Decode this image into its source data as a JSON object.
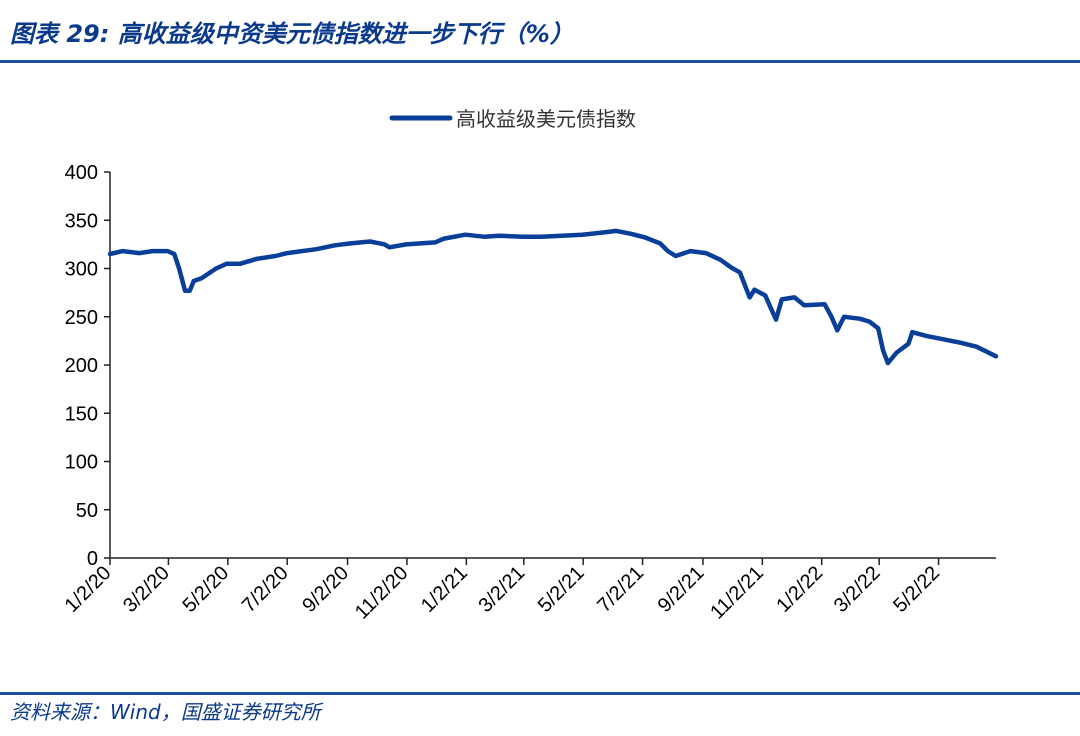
{
  "header": {
    "caption": "图表 29:  高收益级中资美元债指数进一步下行（%）"
  },
  "footer": {
    "source": "资料来源：Wind，国盛证券研究所"
  },
  "colors": {
    "accent": "#0b3a8c",
    "series": "#0a3f99",
    "rule": "#1f4e9c"
  },
  "chart_data": {
    "type": "line",
    "title": "",
    "xlabel": "",
    "ylabel": "",
    "ylim": [
      0,
      400
    ],
    "yticks": [
      0,
      50,
      100,
      150,
      200,
      250,
      300,
      350,
      400
    ],
    "xlim": [
      "2020-01-02",
      "2022-06-30"
    ],
    "xticks": [
      {
        "date": "2020-01-02",
        "label": "1/2/20"
      },
      {
        "date": "2020-03-02",
        "label": "3/2/20"
      },
      {
        "date": "2020-05-02",
        "label": "5/2/20"
      },
      {
        "date": "2020-07-02",
        "label": "7/2/20"
      },
      {
        "date": "2020-09-02",
        "label": "9/2/20"
      },
      {
        "date": "2020-11-02",
        "label": "11/2/20"
      },
      {
        "date": "2021-01-02",
        "label": "1/2/21"
      },
      {
        "date": "2021-03-02",
        "label": "3/2/21"
      },
      {
        "date": "2021-05-02",
        "label": "5/2/21"
      },
      {
        "date": "2021-07-02",
        "label": "7/2/21"
      },
      {
        "date": "2021-09-02",
        "label": "9/2/21"
      },
      {
        "date": "2021-11-02",
        "label": "11/2/21"
      },
      {
        "date": "2022-01-02",
        "label": "1/2/22"
      },
      {
        "date": "2022-03-02",
        "label": "3/2/22"
      },
      {
        "date": "2022-05-02",
        "label": "5/2/22"
      }
    ],
    "grid": false,
    "legend_position": "top-center",
    "series": [
      {
        "name": "高收益级美元债指数",
        "points": [
          [
            "2020-01-02",
            315
          ],
          [
            "2020-01-15",
            318
          ],
          [
            "2020-02-01",
            316
          ],
          [
            "2020-02-15",
            318
          ],
          [
            "2020-03-01",
            318
          ],
          [
            "2020-03-08",
            315
          ],
          [
            "2020-03-13",
            300
          ],
          [
            "2020-03-17",
            285
          ],
          [
            "2020-03-19",
            277
          ],
          [
            "2020-03-24",
            277
          ],
          [
            "2020-03-28",
            287
          ],
          [
            "2020-04-05",
            290
          ],
          [
            "2020-04-20",
            300
          ],
          [
            "2020-05-01",
            305
          ],
          [
            "2020-05-15",
            305
          ],
          [
            "2020-06-01",
            310
          ],
          [
            "2020-06-20",
            313
          ],
          [
            "2020-07-02",
            316
          ],
          [
            "2020-08-01",
            320
          ],
          [
            "2020-08-20",
            324
          ],
          [
            "2020-09-05",
            326
          ],
          [
            "2020-09-25",
            328
          ],
          [
            "2020-10-10",
            325
          ],
          [
            "2020-10-15",
            322
          ],
          [
            "2020-11-01",
            325
          ],
          [
            "2020-12-01",
            327
          ],
          [
            "2020-12-10",
            331
          ],
          [
            "2021-01-01",
            335
          ],
          [
            "2021-01-20",
            333
          ],
          [
            "2021-02-05",
            334
          ],
          [
            "2021-03-01",
            333
          ],
          [
            "2021-03-20",
            333
          ],
          [
            "2021-04-10",
            334
          ],
          [
            "2021-05-01",
            335
          ],
          [
            "2021-05-20",
            337
          ],
          [
            "2021-06-05",
            339
          ],
          [
            "2021-06-20",
            336
          ],
          [
            "2021-07-05",
            332
          ],
          [
            "2021-07-20",
            326
          ],
          [
            "2021-07-28",
            318
          ],
          [
            "2021-08-05",
            313
          ],
          [
            "2021-08-20",
            318
          ],
          [
            "2021-09-05",
            316
          ],
          [
            "2021-09-20",
            309
          ],
          [
            "2021-10-01",
            301
          ],
          [
            "2021-10-10",
            296
          ],
          [
            "2021-10-15",
            283
          ],
          [
            "2021-10-20",
            270
          ],
          [
            "2021-10-25",
            278
          ],
          [
            "2021-11-05",
            272
          ],
          [
            "2021-11-12",
            256
          ],
          [
            "2021-11-16",
            247
          ],
          [
            "2021-11-22",
            268
          ],
          [
            "2021-12-05",
            270
          ],
          [
            "2021-12-15",
            262
          ],
          [
            "2022-01-05",
            263
          ],
          [
            "2022-01-12",
            250
          ],
          [
            "2022-01-18",
            236
          ],
          [
            "2022-01-25",
            250
          ],
          [
            "2022-02-10",
            248
          ],
          [
            "2022-02-20",
            245
          ],
          [
            "2022-03-01",
            238
          ],
          [
            "2022-03-06",
            215
          ],
          [
            "2022-03-11",
            202
          ],
          [
            "2022-03-20",
            213
          ],
          [
            "2022-04-01",
            222
          ],
          [
            "2022-04-05",
            234
          ],
          [
            "2022-04-20",
            230
          ],
          [
            "2022-05-05",
            227
          ],
          [
            "2022-05-25",
            223
          ],
          [
            "2022-06-10",
            219
          ],
          [
            "2022-06-30",
            209
          ]
        ]
      }
    ]
  }
}
